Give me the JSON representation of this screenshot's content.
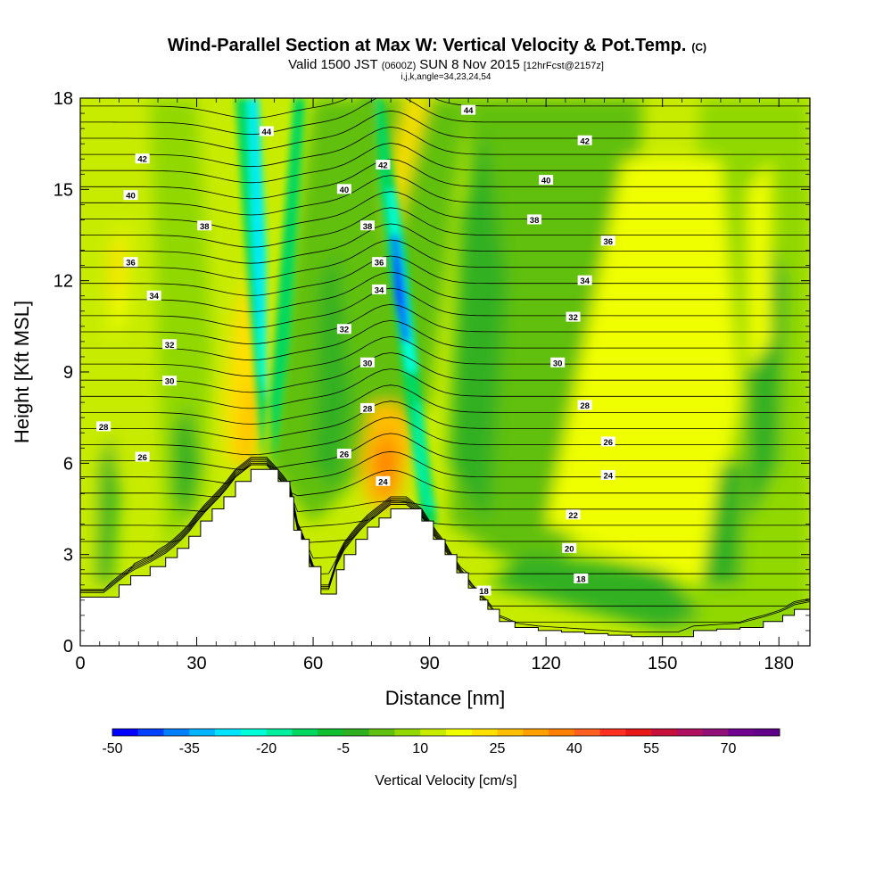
{
  "header": {
    "title": "Wind-Parallel Section at Max W: Vertical Velocity & Pot.Temp.",
    "copyright": "(C)",
    "valid_prefix": "Valid 1500 JST",
    "utc": "(0600Z)",
    "valid_date": "SUN 8 Nov 2015",
    "forecast": "[12hrFcst@2157z]",
    "indices": "i,j,k,angle=34,23,24,54"
  },
  "chart_data": {
    "type": "heatmap",
    "xlabel": "Distance [nm]",
    "ylabel": "Height [Kft MSL]",
    "xlim": [
      0,
      188
    ],
    "ylim": [
      0,
      18
    ],
    "xticks": [
      0,
      30,
      60,
      90,
      120,
      150,
      180
    ],
    "yticks": [
      0,
      3,
      6,
      9,
      12,
      15,
      18
    ],
    "terrain": {
      "x": [
        0,
        6,
        10,
        13,
        18,
        22,
        25,
        28,
        31,
        34,
        37,
        40,
        44,
        48,
        51,
        54,
        55,
        57,
        59,
        62,
        64,
        66,
        68,
        71,
        74,
        77,
        80,
        84,
        88,
        91,
        94,
        97,
        100,
        103,
        105,
        108,
        112,
        118,
        124,
        130,
        136,
        142,
        148,
        154,
        158,
        164,
        170,
        176,
        181,
        184,
        188
      ],
      "height": [
        1.6,
        1.6,
        2.0,
        2.3,
        2.6,
        2.9,
        3.2,
        3.6,
        4.1,
        4.5,
        4.9,
        5.4,
        5.8,
        5.8,
        5.4,
        4.9,
        3.8,
        3.5,
        2.6,
        1.7,
        1.7,
        2.5,
        3.0,
        3.5,
        3.9,
        4.2,
        4.5,
        4.5,
        4.1,
        3.5,
        3.0,
        2.4,
        1.9,
        1.5,
        1.2,
        0.8,
        0.6,
        0.5,
        0.45,
        0.4,
        0.35,
        0.3,
        0.3,
        0.3,
        0.5,
        0.55,
        0.6,
        0.8,
        1.0,
        1.2,
        1.3
      ]
    },
    "theta_contours": {
      "units": "K",
      "levels": [
        18,
        20,
        22,
        24,
        26,
        28,
        30,
        32,
        34,
        36,
        38,
        40,
        42,
        44
      ],
      "labels": [
        {
          "text": "18",
          "x": 104,
          "y": 1.8
        },
        {
          "text": "18",
          "x": 129,
          "y": 2.2
        },
        {
          "text": "20",
          "x": 126,
          "y": 3.2
        },
        {
          "text": "22",
          "x": 127,
          "y": 4.3
        },
        {
          "text": "24",
          "x": 78,
          "y": 5.4
        },
        {
          "text": "24",
          "x": 136,
          "y": 5.6
        },
        {
          "text": "26",
          "x": 16,
          "y": 6.2
        },
        {
          "text": "26",
          "x": 68,
          "y": 6.3
        },
        {
          "text": "26",
          "x": 136,
          "y": 6.7
        },
        {
          "text": "28",
          "x": 6,
          "y": 7.2
        },
        {
          "text": "28",
          "x": 74,
          "y": 7.8
        },
        {
          "text": "28",
          "x": 130,
          "y": 7.9
        },
        {
          "text": "30",
          "x": 23,
          "y": 8.7
        },
        {
          "text": "30",
          "x": 74,
          "y": 9.3
        },
        {
          "text": "30",
          "x": 123,
          "y": 9.3
        },
        {
          "text": "32",
          "x": 23,
          "y": 9.9
        },
        {
          "text": "32",
          "x": 68,
          "y": 10.4
        },
        {
          "text": "32",
          "x": 127,
          "y": 10.8
        },
        {
          "text": "34",
          "x": 19,
          "y": 11.5
        },
        {
          "text": "34",
          "x": 77,
          "y": 11.7
        },
        {
          "text": "34",
          "x": 130,
          "y": 12.0
        },
        {
          "text": "36",
          "x": 13,
          "y": 12.6
        },
        {
          "text": "36",
          "x": 77,
          "y": 12.6
        },
        {
          "text": "36",
          "x": 136,
          "y": 13.3
        },
        {
          "text": "38",
          "x": 32,
          "y": 13.8
        },
        {
          "text": "38",
          "x": 74,
          "y": 13.8
        },
        {
          "text": "38",
          "x": 117,
          "y": 14.0
        },
        {
          "text": "40",
          "x": 13,
          "y": 14.8
        },
        {
          "text": "40",
          "x": 68,
          "y": 15.0
        },
        {
          "text": "40",
          "x": 120,
          "y": 15.3
        },
        {
          "text": "42",
          "x": 16,
          "y": 16.0
        },
        {
          "text": "42",
          "x": 78,
          "y": 15.8
        },
        {
          "text": "42",
          "x": 130,
          "y": 16.6
        },
        {
          "text": "44",
          "x": 48,
          "y": 16.9
        },
        {
          "text": "44",
          "x": 100,
          "y": 17.6
        }
      ]
    },
    "colorbar": {
      "label": "Vertical Velocity [cm/s]",
      "min": -50,
      "max": 80,
      "step": 5,
      "tick_labels": [
        -50,
        -35,
        -20,
        -5,
        10,
        25,
        40,
        55,
        70
      ],
      "colors": [
        "#0000ff",
        "#0040ff",
        "#0080ff",
        "#00b4ff",
        "#00e4ff",
        "#00ffd8",
        "#00f0a0",
        "#00d860",
        "#10c030",
        "#30b020",
        "#60c010",
        "#90d800",
        "#c8ec00",
        "#f0ff00",
        "#ffe000",
        "#ffc000",
        "#ffa000",
        "#ff8000",
        "#ff6020",
        "#ff3020",
        "#e81818",
        "#c8103c",
        "#b01060",
        "#901078",
        "#700090",
        "#600088"
      ]
    }
  }
}
